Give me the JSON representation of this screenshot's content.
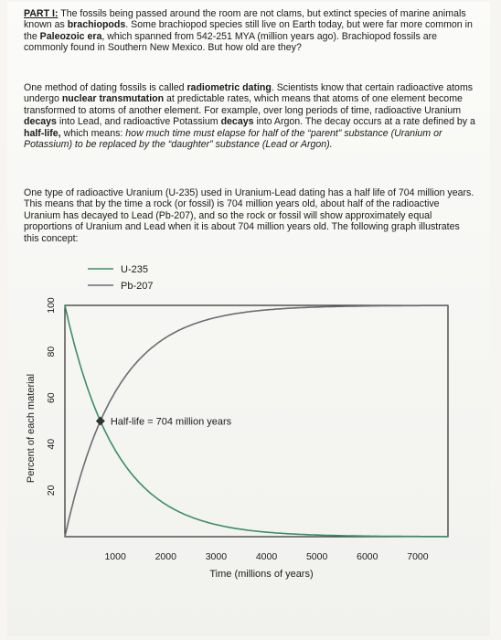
{
  "part1": {
    "heading": "PART I:",
    "s1": " The fossils being passed around the room are not clams, but extinct species of marine animals known as ",
    "b1": "brachiopods",
    "s2": ". Some brachiopod species still live on Earth today, but were far more common in the ",
    "b2": "Paleozoic era",
    "s3": ", which spanned from 542-251 MYA (million years ago). Brachiopod fossils are commonly found in Southern New Mexico. But how old are they?"
  },
  "part2": {
    "s1": "One method of dating fossils is called ",
    "b1": "radiometric dating",
    "s2": ". Scientists know that certain radioactive atoms undergo ",
    "b2": "nuclear transmutation",
    "s3": " at predictable rates, which means that atoms of one element become transformed to atoms of another element. For example, over long periods of time, radioactive Uranium ",
    "b3": "decays",
    "s4": " into Lead, and radioactive Potassium ",
    "b4": "decays",
    "s5": " into Argon. The decay occurs at a rate defined by a ",
    "b5": "half-life,",
    "s6": " which means: ",
    "i1": "how much time must elapse for half of the “parent” substance (Uranium or Potassium) to be replaced by the “daughter” substance (Lead or Argon)."
  },
  "part3": {
    "text": "One type of radioactive Uranium (U-235) used in Uranium-Lead dating has a half life of 704 million years. This means that by the time a rock (or fossil) is 704 million years old, about half of the radioactive Uranium has decayed to Lead (Pb-207), and so the rock or fossil will show approximately equal proportions of Uranium and Lead when it is about 704 million years old. The following graph illustrates this concept:"
  },
  "chart_data": {
    "type": "line",
    "title": "",
    "xlabel": "Time (millions of years)",
    "ylabel": "Percent of each material",
    "xlim": [
      0,
      7600
    ],
    "ylim": [
      0,
      100
    ],
    "x_ticks": [
      "1000",
      "2000",
      "3000",
      "4000",
      "5000",
      "6000",
      "7000"
    ],
    "x_tick_values": [
      1000,
      2000,
      3000,
      4000,
      5000,
      6000,
      7000
    ],
    "y_ticks": [
      "100",
      "80",
      "60",
      "40",
      "20"
    ],
    "y_tick_values": [
      100,
      80,
      60,
      40,
      20
    ],
    "half_life": 704,
    "series": [
      {
        "name": "U-235",
        "color": "#3a8f67",
        "model": "decay",
        "x": [
          0,
          704,
          1408,
          2112,
          2816,
          3520,
          7600
        ],
        "y": [
          100,
          50,
          25,
          12.5,
          6.25,
          3.125,
          0.06
        ]
      },
      {
        "name": "Pb-207",
        "color": "#6b6b73",
        "model": "growth",
        "x": [
          0,
          704,
          1408,
          2112,
          2816,
          3520,
          7600
        ],
        "y": [
          0,
          50,
          75,
          87.5,
          93.75,
          96.875,
          99.94
        ]
      }
    ],
    "annotation": {
      "label": "Half-life = 704 million years",
      "x": 704,
      "y": 50
    },
    "legend": "top-center",
    "grid": false
  }
}
